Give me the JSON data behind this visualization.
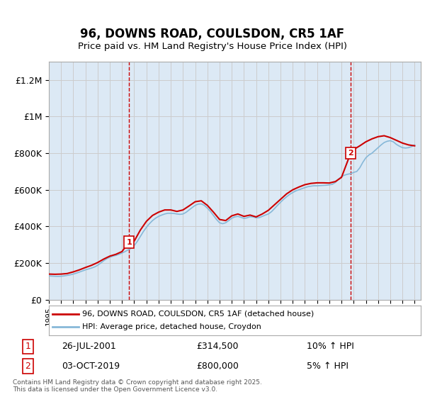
{
  "title": "96, DOWNS ROAD, COULSDON, CR5 1AF",
  "subtitle": "Price paid vs. HM Land Registry's House Price Index (HPI)",
  "xlabel": "",
  "ylabel": "",
  "ylim": [
    0,
    1300000
  ],
  "yticks": [
    0,
    200000,
    400000,
    600000,
    800000,
    1000000,
    1200000
  ],
  "ytick_labels": [
    "£0",
    "£200K",
    "£400K",
    "£600K",
    "£800K",
    "£1M",
    "£1.2M"
  ],
  "xlim_start": 1995.0,
  "xlim_end": 2025.5,
  "grid_color": "#cccccc",
  "bg_color": "#dce9f5",
  "plot_bg": "#dce9f5",
  "red_line_color": "#cc0000",
  "blue_line_color": "#87b8d8",
  "marker1_x": 2001.57,
  "marker1_y": 314500,
  "marker2_x": 2019.75,
  "marker2_y": 800000,
  "marker1_label": "26-JUL-2001",
  "marker1_price": "£314,500",
  "marker1_hpi": "10% ↑ HPI",
  "marker2_label": "03-OCT-2019",
  "marker2_price": "£800,000",
  "marker2_hpi": "5% ↑ HPI",
  "legend1": "96, DOWNS ROAD, COULSDON, CR5 1AF (detached house)",
  "legend2": "HPI: Average price, detached house, Croydon",
  "footnote": "Contains HM Land Registry data © Crown copyright and database right 2025.\nThis data is licensed under the Open Government Licence v3.0.",
  "hpi_years": [
    1995.0,
    1995.25,
    1995.5,
    1995.75,
    1996.0,
    1996.25,
    1996.5,
    1996.75,
    1997.0,
    1997.25,
    1997.5,
    1997.75,
    1998.0,
    1998.25,
    1998.5,
    1998.75,
    1999.0,
    1999.25,
    1999.5,
    1999.75,
    2000.0,
    2000.25,
    2000.5,
    2000.75,
    2001.0,
    2001.25,
    2001.5,
    2001.75,
    2002.0,
    2002.25,
    2002.5,
    2002.75,
    2003.0,
    2003.25,
    2003.5,
    2003.75,
    2004.0,
    2004.25,
    2004.5,
    2004.75,
    2005.0,
    2005.25,
    2005.5,
    2005.75,
    2006.0,
    2006.25,
    2006.5,
    2006.75,
    2007.0,
    2007.25,
    2007.5,
    2007.75,
    2008.0,
    2008.25,
    2008.5,
    2008.75,
    2009.0,
    2009.25,
    2009.5,
    2009.75,
    2010.0,
    2010.25,
    2010.5,
    2010.75,
    2011.0,
    2011.25,
    2011.5,
    2011.75,
    2012.0,
    2012.25,
    2012.5,
    2012.75,
    2013.0,
    2013.25,
    2013.5,
    2013.75,
    2014.0,
    2014.25,
    2014.5,
    2014.75,
    2015.0,
    2015.25,
    2015.5,
    2015.75,
    2016.0,
    2016.25,
    2016.5,
    2016.75,
    2017.0,
    2017.25,
    2017.5,
    2017.75,
    2018.0,
    2018.25,
    2018.5,
    2018.75,
    2019.0,
    2019.25,
    2019.5,
    2019.75,
    2020.0,
    2020.25,
    2020.5,
    2020.75,
    2021.0,
    2021.25,
    2021.5,
    2021.75,
    2022.0,
    2022.25,
    2022.5,
    2022.75,
    2023.0,
    2023.25,
    2023.5,
    2023.75,
    2024.0,
    2024.25,
    2024.5,
    2024.75,
    2025.0
  ],
  "hpi_values": [
    130000,
    129000,
    128000,
    127500,
    128000,
    130000,
    133000,
    136000,
    140000,
    145000,
    151000,
    157000,
    163000,
    168000,
    173000,
    179000,
    188000,
    200000,
    213000,
    224000,
    232000,
    238000,
    242000,
    248000,
    255000,
    263000,
    272000,
    281000,
    296000,
    318000,
    345000,
    372000,
    395000,
    415000,
    432000,
    445000,
    455000,
    462000,
    468000,
    472000,
    472000,
    471000,
    468000,
    466000,
    468000,
    477000,
    490000,
    503000,
    515000,
    522000,
    523000,
    515000,
    500000,
    482000,
    460000,
    438000,
    420000,
    415000,
    420000,
    432000,
    445000,
    452000,
    455000,
    450000,
    444000,
    447000,
    453000,
    452000,
    447000,
    448000,
    455000,
    462000,
    468000,
    480000,
    497000,
    515000,
    532000,
    548000,
    562000,
    575000,
    585000,
    594000,
    600000,
    606000,
    612000,
    617000,
    620000,
    622000,
    622000,
    623000,
    624000,
    625000,
    627000,
    630000,
    640000,
    658000,
    672000,
    680000,
    685000,
    688000,
    695000,
    700000,
    720000,
    750000,
    775000,
    790000,
    800000,
    815000,
    830000,
    845000,
    858000,
    865000,
    868000,
    862000,
    848000,
    838000,
    830000,
    828000,
    830000,
    836000,
    845000
  ],
  "red_years": [
    1995.0,
    1995.5,
    1996.0,
    1996.5,
    1997.0,
    1997.5,
    1998.0,
    1998.5,
    1999.0,
    1999.5,
    2000.0,
    2000.5,
    2001.0,
    2001.57,
    2002.0,
    2002.5,
    2003.0,
    2003.5,
    2004.0,
    2004.5,
    2005.0,
    2005.5,
    2006.0,
    2006.5,
    2007.0,
    2007.5,
    2008.0,
    2008.5,
    2009.0,
    2009.5,
    2010.0,
    2010.5,
    2011.0,
    2011.5,
    2012.0,
    2012.5,
    2013.0,
    2013.5,
    2014.0,
    2014.5,
    2015.0,
    2015.5,
    2016.0,
    2016.5,
    2017.0,
    2017.5,
    2018.0,
    2018.5,
    2019.0,
    2019.75,
    2020.0,
    2020.5,
    2021.0,
    2021.5,
    2022.0,
    2022.5,
    2023.0,
    2023.5,
    2024.0,
    2024.5,
    2025.0
  ],
  "red_values": [
    140000,
    139000,
    140000,
    143000,
    152000,
    163000,
    176000,
    188000,
    203000,
    222000,
    238000,
    248000,
    263000,
    314500,
    320000,
    380000,
    428000,
    460000,
    478000,
    490000,
    490000,
    482000,
    490000,
    512000,
    535000,
    540000,
    515000,
    478000,
    438000,
    432000,
    458000,
    468000,
    455000,
    462000,
    452000,
    468000,
    488000,
    518000,
    548000,
    578000,
    600000,
    615000,
    628000,
    635000,
    638000,
    638000,
    637000,
    645000,
    668000,
    800000,
    820000,
    840000,
    862000,
    878000,
    890000,
    895000,
    885000,
    870000,
    855000,
    845000,
    840000
  ]
}
